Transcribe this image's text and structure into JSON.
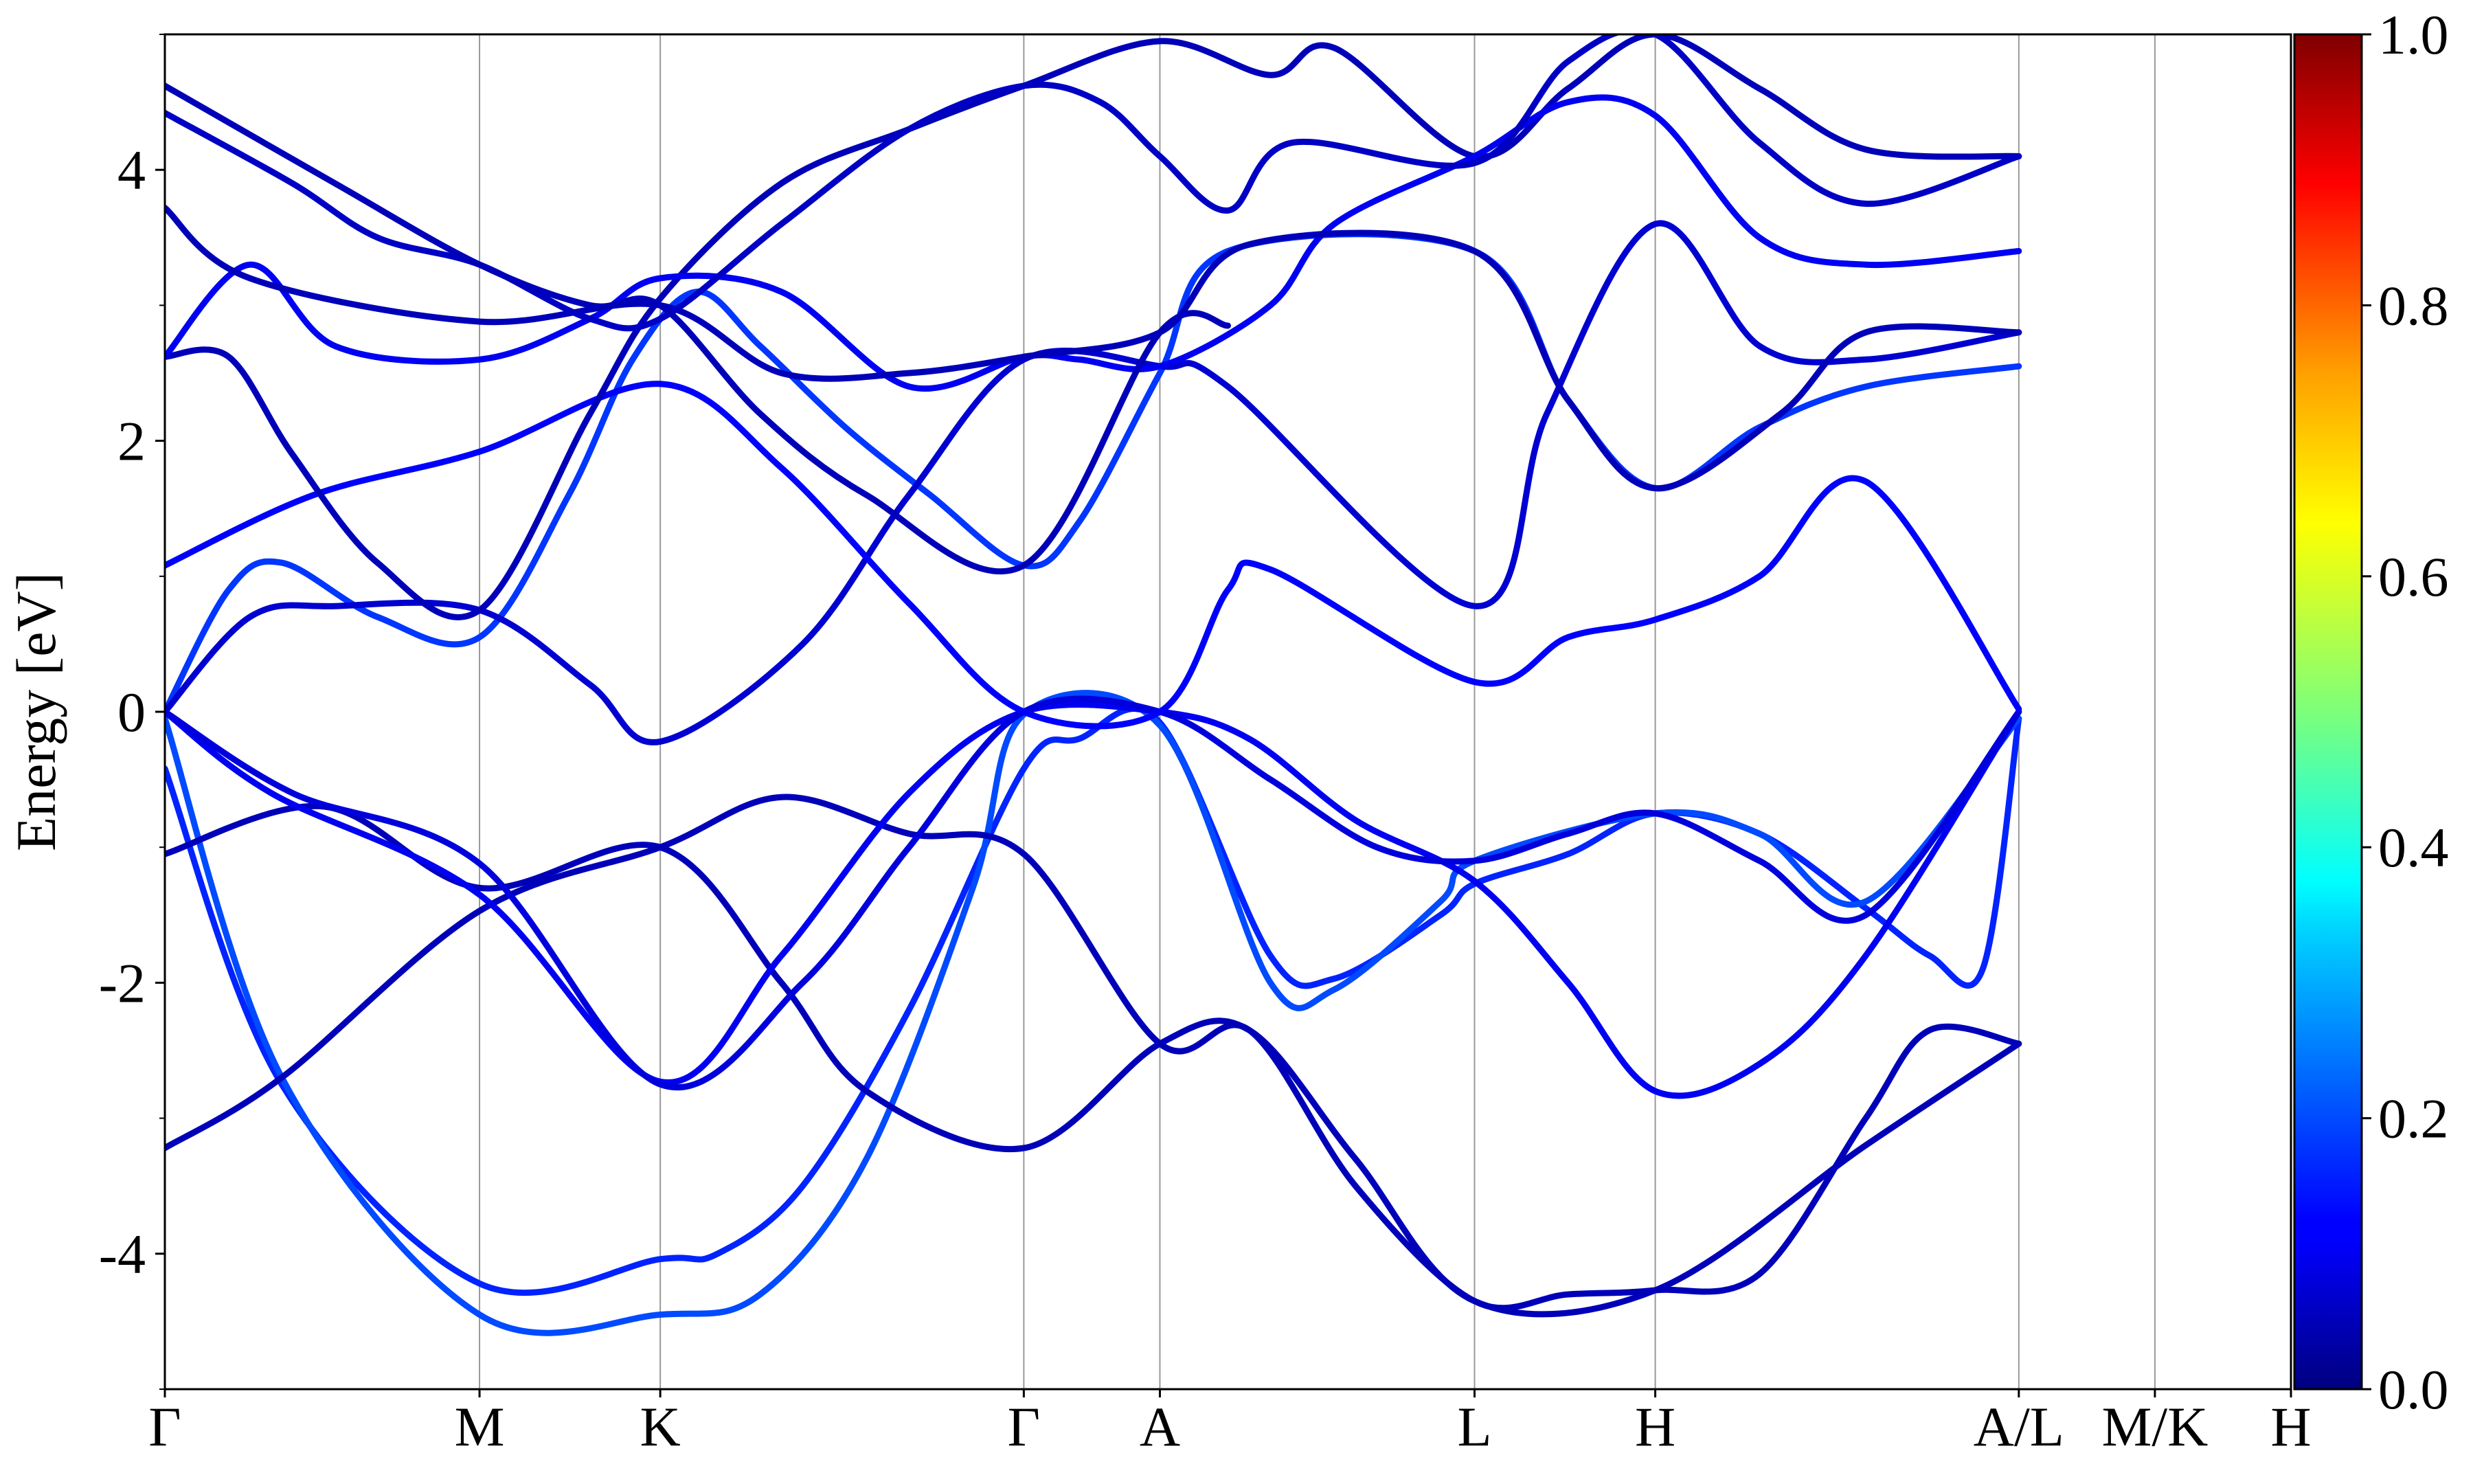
{
  "chart_data": {
    "type": "line",
    "title": "",
    "xlabel": "",
    "ylabel": "Energy [eV]",
    "ylim": [
      -5,
      5
    ],
    "yticks": [
      -4,
      -2,
      0,
      2,
      4
    ],
    "yticks_minor": [
      -5,
      -3,
      -1,
      1,
      3,
      5
    ],
    "x_high_symmetry": [
      {
        "label": "Γ",
        "x": 0
      },
      {
        "label": "M",
        "x": 1.48
      },
      {
        "label": "K",
        "x": 2.33
      },
      {
        "label": "Γ",
        "x": 4.04
      },
      {
        "label": "A",
        "x": 4.68
      },
      {
        "label": "L",
        "x": 6.16
      },
      {
        "label": "H",
        "x": 7.01
      },
      {
        "label": "A/L",
        "x": 8.72
      },
      {
        "label": "M/K",
        "x": 9.36
      },
      {
        "label": "H",
        "x": 10.0
      }
    ],
    "xlim": [
      0,
      10.0
    ],
    "colorbar": {
      "colormap": "jet",
      "range": [
        0,
        1
      ],
      "ticks": [
        "0.0",
        "0.2",
        "0.4",
        "0.6",
        "0.8",
        "1.0"
      ]
    },
    "series": [
      {
        "weight": 0.16,
        "points": [
          [
            0,
            -0.42
          ],
          [
            0.55,
            -2.75
          ],
          [
            1.48,
            -4.22
          ],
          [
            2.33,
            -4.04
          ],
          [
            2.6,
            -4.0
          ],
          [
            3.0,
            -3.5
          ],
          [
            3.5,
            -2.2
          ],
          [
            4.04,
            -0.42
          ],
          [
            4.3,
            -0.2
          ],
          [
            4.68,
            -0.08
          ],
          [
            5.2,
            -1.8
          ],
          [
            5.5,
            -1.97
          ],
          [
            6.0,
            -1.5
          ],
          [
            6.16,
            -1.27
          ],
          [
            6.6,
            -1.05
          ],
          [
            7.01,
            -0.75
          ],
          [
            7.5,
            -0.9
          ],
          [
            8.0,
            -1.45
          ],
          [
            8.3,
            -1.8
          ],
          [
            8.55,
            -1.9
          ],
          [
            8.72,
            -0.05
          ]
        ]
      },
      {
        "weight": 0.2,
        "points": [
          [
            0,
            -0.05
          ],
          [
            0.55,
            -2.7
          ],
          [
            1.48,
            -4.45
          ],
          [
            2.33,
            -4.45
          ],
          [
            2.8,
            -4.3
          ],
          [
            3.3,
            -3.3
          ],
          [
            3.8,
            -1.3
          ],
          [
            4.04,
            -0.02
          ],
          [
            4.68,
            -0.1
          ],
          [
            5.2,
            -2.0
          ],
          [
            5.5,
            -2.05
          ],
          [
            6.0,
            -1.4
          ],
          [
            6.16,
            -1.1
          ],
          [
            7.01,
            -0.75
          ],
          [
            7.5,
            -0.9
          ],
          [
            8.0,
            -1.4
          ],
          [
            8.72,
            -0.05
          ]
        ]
      },
      {
        "weight": 0.05,
        "points": [
          [
            0,
            -3.22
          ],
          [
            0.55,
            -2.7
          ],
          [
            1.48,
            -1.47
          ],
          [
            2.33,
            -1.0
          ],
          [
            2.9,
            -0.63
          ],
          [
            3.5,
            -0.9
          ],
          [
            4.04,
            -1.05
          ],
          [
            4.68,
            -2.45
          ],
          [
            5.1,
            -2.35
          ],
          [
            5.6,
            -3.5
          ],
          [
            6.16,
            -4.35
          ],
          [
            6.6,
            -4.3
          ],
          [
            7.01,
            -4.27
          ],
          [
            7.5,
            -4.15
          ],
          [
            8.0,
            -3.0
          ],
          [
            8.3,
            -2.35
          ],
          [
            8.72,
            -2.45
          ]
        ]
      },
      {
        "weight": 0.05,
        "points": [
          [
            0,
            -1.05
          ],
          [
            0.75,
            -0.7
          ],
          [
            1.48,
            -1.3
          ],
          [
            2.33,
            -1.0
          ],
          [
            2.9,
            -2.0
          ],
          [
            3.3,
            -2.8
          ],
          [
            4.04,
            -3.22
          ],
          [
            4.68,
            -2.45
          ],
          [
            5.1,
            -2.35
          ],
          [
            5.6,
            -3.3
          ],
          [
            6.16,
            -4.35
          ],
          [
            7.01,
            -4.27
          ],
          [
            8.0,
            -3.2
          ],
          [
            8.72,
            -2.45
          ]
        ]
      },
      {
        "weight": 0.1,
        "points": [
          [
            0,
            0.0
          ],
          [
            0.5,
            -0.6
          ],
          [
            1.48,
            -1.35
          ],
          [
            2.33,
            -2.73
          ],
          [
            2.9,
            -1.8
          ],
          [
            3.5,
            -0.6
          ],
          [
            4.04,
            0.0
          ],
          [
            4.68,
            0.0
          ],
          [
            5.1,
            -0.2
          ],
          [
            5.6,
            -0.8
          ],
          [
            6.16,
            -1.25
          ],
          [
            6.6,
            -2.0
          ],
          [
            7.01,
            -2.8
          ],
          [
            7.5,
            -2.6
          ],
          [
            8.0,
            -1.8
          ],
          [
            8.72,
            0.0
          ]
        ]
      },
      {
        "weight": 0.08,
        "points": [
          [
            0,
            0.0
          ],
          [
            0.6,
            -0.6
          ],
          [
            1.48,
            -1.12
          ],
          [
            2.33,
            -2.75
          ],
          [
            3.0,
            -2.0
          ],
          [
            3.5,
            -1.0
          ],
          [
            4.04,
            0.0
          ],
          [
            4.68,
            0.0
          ],
          [
            5.2,
            -0.5
          ],
          [
            5.7,
            -1.0
          ],
          [
            6.16,
            -1.1
          ],
          [
            6.6,
            -0.9
          ],
          [
            7.01,
            -0.75
          ],
          [
            7.5,
            -1.1
          ],
          [
            8.0,
            -1.5
          ],
          [
            8.72,
            0.0
          ]
        ]
      },
      {
        "weight": 0.18,
        "points": [
          [
            0,
            0.0
          ],
          [
            0.3,
            0.9
          ],
          [
            0.55,
            1.1
          ],
          [
            1.0,
            0.7
          ],
          [
            1.48,
            0.55
          ],
          [
            1.9,
            1.6
          ],
          [
            2.2,
            2.6
          ],
          [
            2.5,
            3.1
          ],
          [
            2.8,
            2.7
          ],
          [
            3.2,
            2.1
          ],
          [
            3.6,
            1.6
          ],
          [
            4.04,
            1.08
          ],
          [
            4.3,
            1.4
          ],
          [
            4.68,
            2.5
          ],
          [
            5.0,
            3.4
          ],
          [
            6.16,
            3.4
          ],
          [
            6.6,
            2.3
          ],
          [
            7.01,
            1.65
          ],
          [
            7.5,
            2.1
          ],
          [
            8.0,
            2.4
          ],
          [
            8.72,
            2.55
          ]
        ]
      },
      {
        "weight": 0.07,
        "points": [
          [
            0,
            0.0
          ],
          [
            0.4,
            0.7
          ],
          [
            0.8,
            0.78
          ],
          [
            1.48,
            0.75
          ],
          [
            2.0,
            0.2
          ],
          [
            2.33,
            -0.22
          ],
          [
            3.0,
            0.5
          ],
          [
            3.5,
            1.6
          ],
          [
            4.04,
            2.6
          ],
          [
            4.68,
            2.55
          ],
          [
            5.0,
            2.4
          ],
          [
            6.16,
            0.78
          ],
          [
            6.5,
            2.2
          ],
          [
            7.01,
            3.6
          ],
          [
            7.5,
            2.7
          ],
          [
            8.0,
            2.6
          ],
          [
            8.72,
            2.8
          ]
        ]
      },
      {
        "weight": 0.12,
        "points": [
          [
            0,
            1.08
          ],
          [
            0.7,
            1.6
          ],
          [
            1.48,
            1.92
          ],
          [
            2.33,
            2.42
          ],
          [
            2.9,
            1.8
          ],
          [
            3.5,
            0.8
          ],
          [
            4.04,
            0.0
          ],
          [
            4.68,
            0.0
          ],
          [
            5.0,
            0.9
          ],
          [
            5.2,
            1.05
          ],
          [
            6.16,
            0.22
          ],
          [
            6.6,
            0.55
          ],
          [
            7.01,
            0.68
          ],
          [
            7.5,
            1.0
          ],
          [
            8.0,
            1.7
          ],
          [
            8.72,
            0.02
          ]
        ]
      },
      {
        "weight": 0.05,
        "points": [
          [
            0,
            2.62
          ],
          [
            0.3,
            2.62
          ],
          [
            0.6,
            1.9
          ],
          [
            1.0,
            1.1
          ],
          [
            1.48,
            0.75
          ],
          [
            2.0,
            2.2
          ],
          [
            2.33,
            3.05
          ],
          [
            2.9,
            3.9
          ],
          [
            3.5,
            4.3
          ],
          [
            4.04,
            4.62
          ],
          [
            4.68,
            4.95
          ],
          [
            5.2,
            4.7
          ],
          [
            5.5,
            4.9
          ],
          [
            6.16,
            4.1
          ],
          [
            6.6,
            4.6
          ],
          [
            7.01,
            5.0
          ],
          [
            7.5,
            4.6
          ],
          [
            8.0,
            4.15
          ],
          [
            8.72,
            4.1
          ]
        ]
      },
      {
        "weight": 0.1,
        "points": [
          [
            0,
            2.62
          ],
          [
            0.4,
            3.3
          ],
          [
            0.8,
            2.7
          ],
          [
            1.48,
            2.6
          ],
          [
            2.0,
            2.9
          ],
          [
            2.33,
            3.2
          ],
          [
            2.9,
            3.1
          ],
          [
            3.5,
            2.4
          ],
          [
            4.04,
            2.62
          ],
          [
            4.3,
            2.6
          ],
          [
            4.68,
            2.55
          ],
          [
            5.2,
            3.0
          ],
          [
            5.5,
            3.6
          ],
          [
            6.16,
            4.1
          ],
          [
            6.6,
            4.5
          ],
          [
            7.01,
            4.4
          ],
          [
            7.5,
            3.5
          ],
          [
            8.0,
            3.3
          ],
          [
            8.72,
            3.4
          ]
        ]
      },
      {
        "weight": 0.05,
        "points": [
          [
            0,
            3.72
          ],
          [
            0.4,
            3.2
          ],
          [
            1.48,
            2.88
          ],
          [
            2.33,
            3.0
          ],
          [
            2.9,
            2.5
          ],
          [
            3.5,
            2.5
          ],
          [
            4.04,
            2.62
          ],
          [
            4.68,
            2.8
          ],
          [
            5.1,
            3.45
          ],
          [
            6.16,
            3.4
          ],
          [
            6.6,
            2.3
          ],
          [
            7.01,
            1.65
          ],
          [
            7.6,
            2.2
          ],
          [
            8.0,
            2.8
          ],
          [
            8.72,
            2.8
          ]
        ]
      },
      {
        "weight": 0.06,
        "points": [
          [
            0,
            4.42
          ],
          [
            0.6,
            3.9
          ],
          [
            1.0,
            3.5
          ],
          [
            1.48,
            3.3
          ],
          [
            2.0,
            2.9
          ],
          [
            2.33,
            2.9
          ],
          [
            2.9,
            3.6
          ],
          [
            3.5,
            4.3
          ],
          [
            4.04,
            4.62
          ],
          [
            4.4,
            4.5
          ],
          [
            4.68,
            4.1
          ],
          [
            5.0,
            3.7
          ],
          [
            5.3,
            4.2
          ],
          [
            6.16,
            4.05
          ],
          [
            6.6,
            4.8
          ],
          [
            7.01,
            5.0
          ],
          [
            7.5,
            4.2
          ],
          [
            8.0,
            3.75
          ],
          [
            8.72,
            4.1
          ]
        ]
      },
      {
        "weight": 0.05,
        "points": [
          [
            0,
            4.62
          ],
          [
            0.8,
            3.9
          ],
          [
            1.48,
            3.3
          ],
          [
            2.0,
            3.0
          ],
          [
            2.33,
            3.0
          ],
          [
            2.8,
            2.2
          ],
          [
            3.3,
            1.6
          ],
          [
            4.04,
            1.08
          ],
          [
            4.68,
            2.8
          ],
          [
            5.0,
            2.85
          ]
        ]
      }
    ]
  }
}
